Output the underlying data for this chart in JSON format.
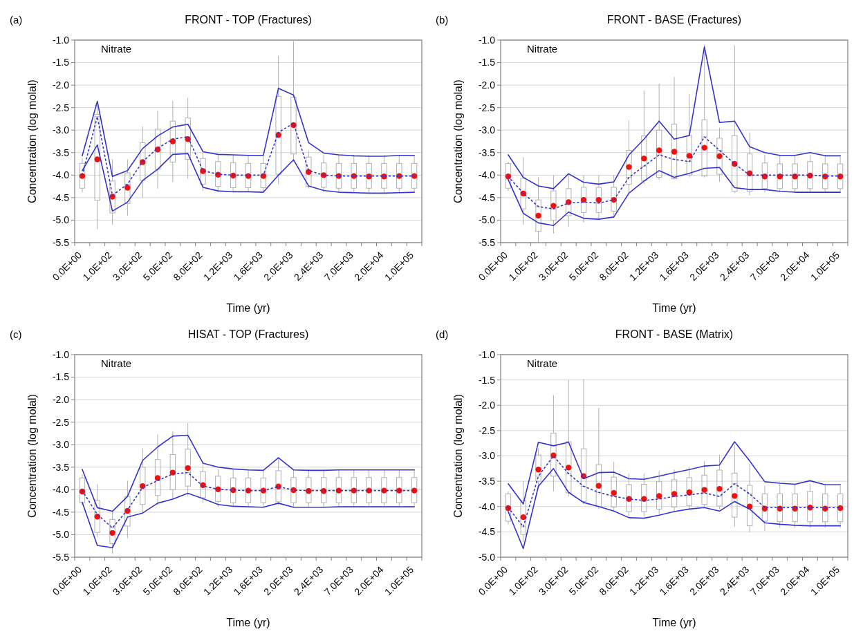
{
  "chart_data": [
    {
      "type": "box",
      "title": "FRONT - TOP (Fractures)",
      "xlabel": "Time (yr)",
      "ylabel": "Concentration (log molal)",
      "annotations": [
        "(a)",
        "Nitrate"
      ],
      "categories": [
        "0.0E+00",
        null,
        "1.0E+02",
        null,
        "3.0E+02",
        null,
        "5.0E+02",
        null,
        "8.0E+02",
        null,
        "1.2E+03",
        null,
        "1.6E+03",
        null,
        "2.0E+03",
        null,
        "2.4E+03",
        null,
        "7.0E+03",
        null,
        "2.0E+04",
        null,
        "1.0E+05"
      ],
      "ylim": [
        -5.5,
        -1.0
      ],
      "yticks": [
        {
          "value": -5.5,
          "label": "-5.5"
        },
        {
          "value": -5.0,
          "label": "-5.0"
        },
        {
          "value": -4.5,
          "label": "-4.5"
        },
        {
          "value": -4.0,
          "label": "-4.0"
        },
        {
          "value": -3.5,
          "label": "-3.5"
        },
        {
          "value": -3.0,
          "label": "-3.0"
        },
        {
          "value": -2.5,
          "label": "-2.5"
        },
        {
          "value": -2.0,
          "label": "-2.0"
        },
        {
          "value": -1.5,
          "label": "-1.5"
        },
        {
          "value": -1.0,
          "label": "-1.0"
        }
      ],
      "grid": "y",
      "series": [
        {
          "type": "box",
          "boxes": [
            {
              "low": -4.38,
              "q1": -4.29,
              "median": -4.0,
              "q3": -3.74,
              "high": -3.62,
              "mean": -4.02
            },
            {
              "low": -5.2,
              "q1": -4.56,
              "median": -2.7,
              "q3": -2.65,
              "high": -2.45,
              "mean": -3.65
            },
            {
              "low": -5.1,
              "q1": -4.84,
              "median": -4.45,
              "q3": -4.13,
              "high": -3.65,
              "mean": -4.48
            },
            {
              "low": -4.9,
              "q1": -4.63,
              "median": -4.2,
              "q3": -3.95,
              "high": -3.65,
              "mean": -4.28
            },
            {
              "low": -4.5,
              "q1": -4.12,
              "median": -3.7,
              "q3": -3.28,
              "high": -2.92,
              "mean": -3.71
            },
            {
              "low": -4.3,
              "q1": -3.87,
              "median": -3.4,
              "q3": -2.98,
              "high": -2.57,
              "mean": -3.43
            },
            {
              "low": -4.15,
              "q1": -3.71,
              "median": -3.2,
              "q3": -2.8,
              "high": -2.35,
              "mean": -3.25
            },
            {
              "low": -4.08,
              "q1": -3.65,
              "median": -3.15,
              "q3": -2.73,
              "high": -2.28,
              "mean": -3.2
            },
            {
              "low": -4.35,
              "q1": -4.2,
              "median": -3.9,
              "q3": -3.63,
              "high": -3.5,
              "mean": -3.91
            },
            {
              "low": -4.38,
              "q1": -4.25,
              "median": -3.98,
              "q3": -3.7,
              "high": -3.55,
              "mean": -3.99
            },
            {
              "low": -4.38,
              "q1": -4.28,
              "median": -4.0,
              "q3": -3.72,
              "high": -3.55,
              "mean": -4.01
            },
            {
              "low": -4.38,
              "q1": -4.28,
              "median": -4.0,
              "q3": -3.74,
              "high": -3.55,
              "mean": -4.02
            },
            {
              "low": -4.38,
              "q1": -4.28,
              "median": -4.0,
              "q3": -3.74,
              "high": -3.55,
              "mean": -4.02
            },
            {
              "low": -4.2,
              "q1": -3.98,
              "median": -3.05,
              "q3": -2.25,
              "high": -1.35,
              "mean": -3.11
            },
            {
              "low": -3.7,
              "q1": -3.53,
              "median": -2.85,
              "q3": -2.27,
              "high": -1.02,
              "mean": -2.89
            },
            {
              "low": -4.3,
              "q1": -4.25,
              "median": -3.9,
              "q3": -3.6,
              "high": -3.45,
              "mean": -3.93
            },
            {
              "low": -4.38,
              "q1": -4.27,
              "median": -4.0,
              "q3": -3.73,
              "high": -3.55,
              "mean": -4.0
            },
            {
              "low": -4.38,
              "q1": -4.29,
              "median": -4.02,
              "q3": -3.74,
              "high": -3.55,
              "mean": -4.02
            },
            {
              "low": -4.38,
              "q1": -4.29,
              "median": -4.02,
              "q3": -3.74,
              "high": -3.55,
              "mean": -4.02
            },
            {
              "low": -4.38,
              "q1": -4.29,
              "median": -4.02,
              "q3": -3.74,
              "high": -3.55,
              "mean": -4.03
            },
            {
              "low": -4.38,
              "q1": -4.29,
              "median": -4.02,
              "q3": -3.74,
              "high": -3.55,
              "mean": -4.03
            },
            {
              "low": -4.38,
              "q1": -4.29,
              "median": -4.02,
              "q3": -3.74,
              "high": -3.55,
              "mean": -4.02
            },
            {
              "low": -4.38,
              "q1": -4.29,
              "median": -4.02,
              "q3": -3.74,
              "high": -3.55,
              "mean": -4.02
            }
          ]
        },
        {
          "type": "line",
          "color": "#3333cc",
          "line_style": "solid",
          "values": [
            -3.57,
            -2.36,
            -4.03,
            -3.9,
            -3.41,
            -3.13,
            -2.93,
            -2.87,
            -3.48,
            -3.54,
            -3.55,
            -3.56,
            -3.56,
            -2.07,
            -2.22,
            -3.28,
            -3.51,
            -3.55,
            -3.57,
            -3.58,
            -3.58,
            -3.56,
            -3.56
          ]
        },
        {
          "type": "line",
          "color": "#3333cc",
          "line_style": "solid",
          "values": [
            -3.9,
            -3.33,
            -4.8,
            -4.6,
            -4.12,
            -3.87,
            -3.54,
            -3.52,
            -4.27,
            -4.35,
            -4.37,
            -4.37,
            -4.38,
            -4.0,
            -3.66,
            -4.24,
            -4.34,
            -4.38,
            -4.39,
            -4.4,
            -4.4,
            -4.39,
            -4.38
          ]
        },
        {
          "type": "line",
          "color": "#3333cc",
          "line_style": "dotted",
          "values": [
            -4.0,
            -2.7,
            -4.45,
            -4.2,
            -3.7,
            -3.4,
            -3.2,
            -3.15,
            -3.9,
            -3.98,
            -4.0,
            -4.0,
            -4.0,
            -3.05,
            -2.85,
            -3.9,
            -4.0,
            -4.02,
            -4.02,
            -4.02,
            -4.02,
            -4.02,
            -4.02
          ]
        }
      ]
    },
    {
      "type": "box",
      "title": "FRONT - BASE (Fractures)",
      "xlabel": "Time (yr)",
      "ylabel": "Concentration (log molal)",
      "annotations": [
        "(b)",
        "Nitrate"
      ],
      "categories": [
        "0.0E+00",
        null,
        "1.0E+02",
        null,
        "3.0E+02",
        null,
        "5.0E+02",
        null,
        "8.0E+02",
        null,
        "1.2E+03",
        null,
        "1.6E+03",
        null,
        "2.0E+03",
        null,
        "2.4E+03",
        null,
        "7.0E+03",
        null,
        "2.0E+04",
        null,
        "1.0E+05"
      ],
      "ylim": [
        -5.5,
        -1.0
      ],
      "yticks": [
        {
          "value": -5.5,
          "label": "-5.5"
        },
        {
          "value": -5.0,
          "label": "-5.0"
        },
        {
          "value": -4.5,
          "label": "-4.5"
        },
        {
          "value": -4.0,
          "label": "-4.0"
        },
        {
          "value": -3.5,
          "label": "-3.5"
        },
        {
          "value": -3.0,
          "label": "-3.0"
        },
        {
          "value": -2.5,
          "label": "-2.5"
        },
        {
          "value": -2.0,
          "label": "-2.0"
        },
        {
          "value": -1.5,
          "label": "-1.5"
        },
        {
          "value": -1.0,
          "label": "-1.0"
        }
      ],
      "grid": "y",
      "series": [
        {
          "type": "box",
          "boxes": [
            {
              "low": -4.35,
              "q1": -4.29,
              "median": -4.03,
              "q3": -3.74,
              "high": -3.7,
              "mean": -4.03
            },
            {
              "low": -5.1,
              "q1": -4.75,
              "median": -4.4,
              "q3": -4.07,
              "high": -3.6,
              "mean": -4.41
            },
            {
              "low": -5.5,
              "q1": -5.25,
              "median": -4.7,
              "q3": -4.55,
              "high": -4.05,
              "mean": -4.9
            },
            {
              "low": -5.3,
              "q1": -5.0,
              "median": -4.75,
              "q3": -4.35,
              "high": -4.0,
              "mean": -4.68
            },
            {
              "low": -5.15,
              "q1": -4.9,
              "median": -4.62,
              "q3": -4.3,
              "high": -4.0,
              "mean": -4.6
            },
            {
              "low": -5.05,
              "q1": -4.83,
              "median": -4.6,
              "q3": -4.27,
              "high": -4.0,
              "mean": -4.55
            },
            {
              "low": -5.0,
              "q1": -4.83,
              "median": -4.62,
              "q3": -4.27,
              "high": -4.0,
              "mean": -4.55
            },
            {
              "low": -4.95,
              "q1": -4.8,
              "median": -4.55,
              "q3": -4.27,
              "high": -4.0,
              "mean": -4.55
            },
            {
              "low": -4.4,
              "q1": -4.2,
              "median": -4.05,
              "q3": -3.45,
              "high": -2.78,
              "mean": -3.82
            },
            {
              "low": -4.2,
              "q1": -4.12,
              "median": -3.8,
              "q3": -3.13,
              "high": -2.12,
              "mean": -3.63
            },
            {
              "low": -4.1,
              "q1": -4.05,
              "median": -3.55,
              "q3": -3.0,
              "high": -1.97,
              "mean": -3.45
            },
            {
              "low": -4.1,
              "q1": -4.08,
              "median": -3.65,
              "q3": -2.87,
              "high": -1.82,
              "mean": -3.48
            },
            {
              "low": -4.05,
              "q1": -4.0,
              "median": -3.7,
              "q3": -3.12,
              "high": -2.2,
              "mean": -3.57
            },
            {
              "low": -4.05,
              "q1": -4.02,
              "median": -3.15,
              "q3": -2.77,
              "high": -1.1,
              "mean": -3.39
            },
            {
              "low": -4.15,
              "q1": -3.98,
              "median": -3.45,
              "q3": -3.18,
              "high": -2.95,
              "mean": -3.58
            },
            {
              "low": -4.4,
              "q1": -4.36,
              "median": -3.75,
              "q3": -3.12,
              "high": -1.12,
              "mean": -3.75
            },
            {
              "low": -4.45,
              "q1": -4.36,
              "median": -4.0,
              "q3": -3.53,
              "high": -3.05,
              "mean": -3.96
            },
            {
              "low": -4.38,
              "q1": -4.3,
              "median": -4.0,
              "q3": -3.73,
              "high": -3.55,
              "mean": -4.03
            },
            {
              "low": -4.38,
              "q1": -4.3,
              "median": -4.0,
              "q3": -3.75,
              "high": -3.55,
              "mean": -4.03
            },
            {
              "low": -4.38,
              "q1": -4.3,
              "median": -4.0,
              "q3": -3.75,
              "high": -3.55,
              "mean": -4.03
            },
            {
              "low": -4.38,
              "q1": -4.3,
              "median": -4.0,
              "q3": -3.7,
              "high": -3.55,
              "mean": -4.01
            },
            {
              "low": -4.38,
              "q1": -4.3,
              "median": -4.02,
              "q3": -3.75,
              "high": -3.55,
              "mean": -4.03
            },
            {
              "low": -4.38,
              "q1": -4.3,
              "median": -4.02,
              "q3": -3.75,
              "high": -3.55,
              "mean": -4.03
            }
          ]
        },
        {
          "type": "line",
          "color": "#3333cc",
          "line_style": "solid",
          "values": [
            -3.55,
            -4.05,
            -4.24,
            -4.3,
            -3.97,
            -4.16,
            -4.2,
            -4.15,
            -3.55,
            -3.2,
            -2.8,
            -3.2,
            -3.12,
            -1.15,
            -2.83,
            -2.8,
            -3.37,
            -3.5,
            -3.56,
            -3.56,
            -3.5,
            -3.57,
            -3.57
          ]
        },
        {
          "type": "line",
          "color": "#3333cc",
          "line_style": "solid",
          "values": [
            -4.1,
            -4.85,
            -5.06,
            -5.12,
            -4.82,
            -4.96,
            -4.98,
            -4.93,
            -4.4,
            -4.13,
            -3.9,
            -4.05,
            -3.96,
            -3.85,
            -3.83,
            -4.28,
            -4.32,
            -4.32,
            -4.36,
            -4.38,
            -4.38,
            -4.38,
            -4.38
          ]
        },
        {
          "type": "line",
          "color": "#3333cc",
          "line_style": "dotted",
          "values": [
            -4.03,
            -4.4,
            -4.7,
            -4.75,
            -4.62,
            -4.6,
            -4.62,
            -4.55,
            -4.05,
            -3.8,
            -3.55,
            -3.65,
            -3.7,
            -3.15,
            -3.45,
            -3.75,
            -4.0,
            -4.0,
            -4.0,
            -4.0,
            -4.0,
            -4.02,
            -4.02
          ]
        }
      ]
    },
    {
      "type": "box",
      "title": "HISAT - TOP (Fractures)",
      "xlabel": "Time (yr)",
      "ylabel": "Concentration (log molal)",
      "annotations": [
        "(c)",
        "Nitrate"
      ],
      "categories": [
        "0.0E+00",
        null,
        "1.0E+02",
        null,
        "3.0E+02",
        null,
        "5.0E+02",
        null,
        "8.0E+02",
        null,
        "1.2E+03",
        null,
        "1.6E+03",
        null,
        "2.0E+03",
        null,
        "2.4E+03",
        null,
        "7.0E+03",
        null,
        "2.0E+04",
        null,
        "1.0E+05"
      ],
      "ylim": [
        -5.5,
        -1.0
      ],
      "yticks": [
        {
          "value": -5.5,
          "label": "-5.5"
        },
        {
          "value": -5.0,
          "label": "-5.0"
        },
        {
          "value": -4.5,
          "label": "-4.5"
        },
        {
          "value": -4.0,
          "label": "-4.0"
        },
        {
          "value": -3.5,
          "label": "-3.5"
        },
        {
          "value": -3.0,
          "label": "-3.0"
        },
        {
          "value": -2.5,
          "label": "-2.5"
        },
        {
          "value": -2.0,
          "label": "-2.0"
        },
        {
          "value": -1.5,
          "label": "-1.5"
        },
        {
          "value": -1.0,
          "label": "-1.0"
        }
      ],
      "grid": "y",
      "series": [
        {
          "type": "box",
          "boxes": [
            {
              "low": -4.35,
              "q1": -4.29,
              "median": -4.02,
              "q3": -3.74,
              "high": -3.65,
              "mean": -4.04
            },
            {
              "low": -5.05,
              "q1": -4.95,
              "median": -4.55,
              "q3": -4.24,
              "high": -3.88,
              "mean": -4.6
            },
            {
              "low": -5.42,
              "q1": -5.2,
              "median": -4.85,
              "q3": -4.66,
              "high": -4.5,
              "mean": -4.96
            },
            {
              "low": -5.08,
              "q1": -4.81,
              "median": -4.45,
              "q3": -4.15,
              "high": -3.8,
              "mean": -4.47
            },
            {
              "low": -4.5,
              "q1": -4.33,
              "median": -3.95,
              "q3": -3.5,
              "high": -3.08,
              "mean": -3.92
            },
            {
              "low": -4.35,
              "q1": -4.13,
              "median": -3.8,
              "q3": -3.33,
              "high": -2.77,
              "mean": -3.74
            },
            {
              "low": -4.2,
              "q1": -4.0,
              "median": -3.65,
              "q3": -3.22,
              "high": -2.7,
              "mean": -3.62
            },
            {
              "low": -4.15,
              "q1": -3.92,
              "median": -3.62,
              "q3": -3.1,
              "high": -2.52,
              "mean": -3.52
            },
            {
              "low": -4.3,
              "q1": -4.18,
              "median": -3.92,
              "q3": -3.6,
              "high": -3.4,
              "mean": -3.9
            },
            {
              "low": -4.38,
              "q1": -4.26,
              "median": -3.99,
              "q3": -3.7,
              "high": -3.55,
              "mean": -3.99
            },
            {
              "low": -4.38,
              "q1": -4.29,
              "median": -4.01,
              "q3": -3.74,
              "high": -3.55,
              "mean": -4.01
            },
            {
              "low": -4.38,
              "q1": -4.29,
              "median": -4.02,
              "q3": -3.74,
              "high": -3.55,
              "mean": -4.02
            },
            {
              "low": -4.38,
              "q1": -4.29,
              "median": -4.02,
              "q3": -3.74,
              "high": -3.55,
              "mean": -4.02
            },
            {
              "low": -4.35,
              "q1": -4.27,
              "median": -3.93,
              "q3": -3.58,
              "high": -3.3,
              "mean": -3.93
            },
            {
              "low": -4.38,
              "q1": -4.29,
              "median": -4.01,
              "q3": -3.73,
              "high": -3.55,
              "mean": -4.01
            },
            {
              "low": -4.38,
              "q1": -4.29,
              "median": -4.02,
              "q3": -3.73,
              "high": -3.55,
              "mean": -4.03
            },
            {
              "low": -4.38,
              "q1": -4.29,
              "median": -4.02,
              "q3": -3.73,
              "high": -3.55,
              "mean": -4.03
            },
            {
              "low": -4.38,
              "q1": -4.29,
              "median": -4.02,
              "q3": -3.73,
              "high": -3.55,
              "mean": -4.02
            },
            {
              "low": -4.38,
              "q1": -4.29,
              "median": -4.02,
              "q3": -3.73,
              "high": -3.55,
              "mean": -4.02
            },
            {
              "low": -4.38,
              "q1": -4.29,
              "median": -4.02,
              "q3": -3.73,
              "high": -3.55,
              "mean": -4.02
            },
            {
              "low": -4.38,
              "q1": -4.29,
              "median": -4.02,
              "q3": -3.73,
              "high": -3.55,
              "mean": -4.02
            },
            {
              "low": -4.38,
              "q1": -4.29,
              "median": -4.02,
              "q3": -3.73,
              "high": -3.55,
              "mean": -4.02
            },
            {
              "low": -4.38,
              "q1": -4.29,
              "median": -4.02,
              "q3": -3.73,
              "high": -3.55,
              "mean": -4.02
            }
          ]
        },
        {
          "type": "line",
          "color": "#3333cc",
          "line_style": "solid",
          "values": [
            -3.55,
            -4.4,
            -4.48,
            -4.15,
            -3.35,
            -3.05,
            -2.81,
            -2.79,
            -3.41,
            -3.5,
            -3.54,
            -3.56,
            -3.57,
            -3.29,
            -3.56,
            -3.57,
            -3.57,
            -3.56,
            -3.56,
            -3.56,
            -3.56,
            -3.56,
            -3.56
          ]
        },
        {
          "type": "line",
          "color": "#3333cc",
          "line_style": "solid",
          "values": [
            -4.28,
            -5.24,
            -5.29,
            -4.61,
            -4.52,
            -4.3,
            -4.21,
            -4.08,
            -4.2,
            -4.33,
            -4.37,
            -4.38,
            -4.39,
            -4.3,
            -4.39,
            -4.39,
            -4.39,
            -4.38,
            -4.38,
            -4.38,
            -4.38,
            -4.38,
            -4.38
          ]
        },
        {
          "type": "line",
          "color": "#3333cc",
          "line_style": "dotted",
          "values": [
            -4.02,
            -4.55,
            -4.85,
            -4.45,
            -3.95,
            -3.8,
            -3.65,
            -3.62,
            -3.92,
            -3.99,
            -4.01,
            -4.02,
            -4.02,
            -3.93,
            -4.01,
            -4.02,
            -4.02,
            -4.02,
            -4.02,
            -4.02,
            -4.02,
            -4.02,
            -4.02
          ]
        }
      ]
    },
    {
      "type": "box",
      "title": "FRONT - BASE (Matrix)",
      "xlabel": "Time (yr)",
      "ylabel": "Concentration (log molal)",
      "annotations": [
        "(d)",
        "Nitrate"
      ],
      "categories": [
        "0.0E+00",
        null,
        "1.0E+02",
        null,
        "3.0E+02",
        null,
        "5.0E+02",
        null,
        "8.0E+02",
        null,
        "1.2E+03",
        null,
        "1.6E+03",
        null,
        "2.0E+03",
        null,
        "2.4E+03",
        null,
        "7.0E+03",
        null,
        "2.0E+04",
        null,
        "1.0E+05"
      ],
      "ylim": [
        -5.0,
        -1.0
      ],
      "yticks": [
        {
          "value": -5.0,
          "label": "-5.0"
        },
        {
          "value": -4.5,
          "label": "-4.5"
        },
        {
          "value": -4.0,
          "label": "-4.0"
        },
        {
          "value": -3.5,
          "label": "-3.5"
        },
        {
          "value": -3.0,
          "label": "-3.0"
        },
        {
          "value": -2.5,
          "label": "-2.5"
        },
        {
          "value": -2.0,
          "label": "-2.0"
        },
        {
          "value": -1.5,
          "label": "-1.5"
        },
        {
          "value": -1.0,
          "label": "-1.0"
        }
      ],
      "grid": "y",
      "series": [
        {
          "type": "box",
          "boxes": [
            {
              "low": -4.35,
              "q1": -4.29,
              "median": -4.02,
              "q3": -3.75,
              "high": -3.7,
              "mean": -4.03
            },
            {
              "low": -4.7,
              "q1": -4.55,
              "median": -4.4,
              "q3": -3.88,
              "high": -3.5,
              "mean": -4.21
            },
            {
              "low": -3.65,
              "q1": -3.5,
              "median": -3.4,
              "q3": -2.98,
              "high": -2.85,
              "mean": -3.27
            },
            {
              "low": -3.7,
              "q1": -3.4,
              "median": -3.0,
              "q3": -2.55,
              "high": -1.8,
              "mean": -2.99
            },
            {
              "low": -3.8,
              "q1": -3.73,
              "median": -3.35,
              "q3": -2.72,
              "high": -1.5,
              "mean": -3.23
            },
            {
              "low": -3.95,
              "q1": -3.9,
              "median": -3.6,
              "q3": -2.86,
              "high": -1.48,
              "mean": -3.4
            },
            {
              "low": -4.05,
              "q1": -4.0,
              "median": -3.72,
              "q3": -3.17,
              "high": -2.05,
              "mean": -3.59
            },
            {
              "low": -4.1,
              "q1": -4.01,
              "median": -3.8,
              "q3": -3.42,
              "high": -3.12,
              "mean": -3.73
            },
            {
              "low": -4.2,
              "q1": -4.1,
              "median": -3.85,
              "q3": -3.57,
              "high": -3.35,
              "mean": -3.85
            },
            {
              "low": -4.2,
              "q1": -4.1,
              "median": -3.88,
              "q3": -3.56,
              "high": -3.35,
              "mean": -3.85
            },
            {
              "low": -4.15,
              "q1": -4.05,
              "median": -3.85,
              "q3": -3.51,
              "high": -3.3,
              "mean": -3.79
            },
            {
              "low": -4.1,
              "q1": -4.01,
              "median": -3.8,
              "q3": -3.47,
              "high": -3.27,
              "mean": -3.75
            },
            {
              "low": -4.05,
              "q1": -3.98,
              "median": -3.77,
              "q3": -3.43,
              "high": -3.22,
              "mean": -3.72
            },
            {
              "low": -4.0,
              "q1": -3.96,
              "median": -3.73,
              "q3": -3.38,
              "high": -3.1,
              "mean": -3.67
            },
            {
              "low": -4.05,
              "q1": -3.99,
              "median": -3.8,
              "q3": -3.28,
              "high": -2.98,
              "mean": -3.65
            },
            {
              "low": -4.4,
              "q1": -4.21,
              "median": -3.55,
              "q3": -3.34,
              "high": -2.78,
              "mean": -3.79
            },
            {
              "low": -4.5,
              "q1": -4.38,
              "median": -3.75,
              "q3": -3.58,
              "high": -3.15,
              "mean": -4.0
            },
            {
              "low": -4.48,
              "q1": -4.29,
              "median": -4.02,
              "q3": -3.75,
              "high": -3.6,
              "mean": -4.04
            },
            {
              "low": -4.42,
              "q1": -4.3,
              "median": -4.02,
              "q3": -3.75,
              "high": -3.55,
              "mean": -4.04
            },
            {
              "low": -4.42,
              "q1": -4.3,
              "median": -4.02,
              "q3": -3.75,
              "high": -3.55,
              "mean": -4.04
            },
            {
              "low": -4.42,
              "q1": -4.3,
              "median": -4.02,
              "q3": -3.7,
              "high": -3.55,
              "mean": -4.02
            },
            {
              "low": -4.42,
              "q1": -4.3,
              "median": -4.02,
              "q3": -3.75,
              "high": -3.55,
              "mean": -4.04
            },
            {
              "low": -4.42,
              "q1": -4.3,
              "median": -4.02,
              "q3": -3.75,
              "high": -3.55,
              "mean": -4.03
            }
          ]
        },
        {
          "type": "line",
          "color": "#3333cc",
          "line_style": "solid",
          "values": [
            -3.55,
            -3.95,
            -2.73,
            -2.8,
            -2.73,
            -3.45,
            -3.33,
            -3.32,
            -3.45,
            -3.46,
            -3.4,
            -3.33,
            -3.27,
            -3.2,
            -3.18,
            -2.72,
            -3.1,
            -3.51,
            -3.54,
            -3.56,
            -3.49,
            -3.57,
            -3.57
          ]
        },
        {
          "type": "line",
          "color": "#3333cc",
          "line_style": "solid",
          "values": [
            -4.1,
            -4.83,
            -3.6,
            -3.25,
            -3.72,
            -3.92,
            -4.0,
            -4.09,
            -4.22,
            -4.23,
            -4.17,
            -4.1,
            -4.05,
            -4.02,
            -4.09,
            -3.9,
            -4.05,
            -4.32,
            -4.35,
            -4.37,
            -4.38,
            -4.38,
            -4.38
          ]
        },
        {
          "type": "line",
          "color": "#3333cc",
          "line_style": "dotted",
          "values": [
            -4.02,
            -4.4,
            -3.4,
            -3.0,
            -3.35,
            -3.6,
            -3.72,
            -3.8,
            -3.85,
            -3.88,
            -3.85,
            -3.8,
            -3.77,
            -3.73,
            -3.8,
            -3.55,
            -3.75,
            -4.02,
            -4.02,
            -4.02,
            -4.02,
            -4.02,
            -4.02
          ]
        }
      ]
    }
  ]
}
